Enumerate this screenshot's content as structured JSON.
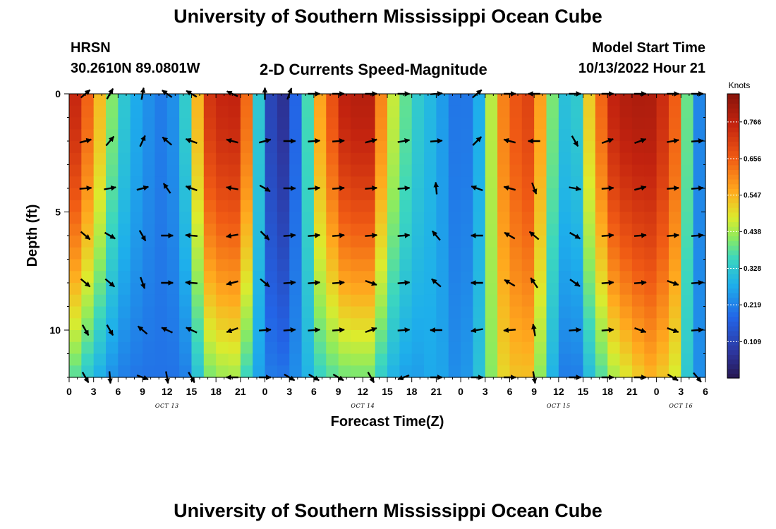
{
  "page": {
    "title_top": "University of Southern Mississippi Ocean Cube",
    "title_bottom": "University of Southern Mississippi Ocean Cube",
    "station": "HRSN",
    "coords": "30.2610N  89.0801W",
    "subtitle": "2-D Currents Speed-Magnitude",
    "model_label": "Model Start Time",
    "model_time": "10/13/2022 Hour 21"
  },
  "chart_data": {
    "type": "heatmap",
    "title": "2-D Currents Speed-Magnitude",
    "xlabel": "Forecast Time(Z)",
    "ylabel": "Depth (ft)",
    "x_tick_labels": [
      "0",
      "3",
      "6",
      "9",
      "12",
      "15",
      "18",
      "21",
      "0",
      "3",
      "6",
      "9",
      "12",
      "15",
      "18",
      "21",
      "0",
      "3",
      "6",
      "9",
      "12",
      "15",
      "18",
      "21",
      "0",
      "3",
      "6"
    ],
    "x_range_hours": [
      0,
      78
    ],
    "date_labels": [
      {
        "text": "OCT 13",
        "hour": 12
      },
      {
        "text": "OCT 14",
        "hour": 36
      },
      {
        "text": "OCT 15",
        "hour": 60
      },
      {
        "text": "OCT 16",
        "hour": 75
      }
    ],
    "y_ticks": [
      0,
      5,
      10
    ],
    "y_range_ft": [
      0,
      12
    ],
    "colorbar": {
      "label": "Knots",
      "ticks": [
        "0.766",
        "0.656",
        "0.547",
        "0.438",
        "0.328",
        "0.219",
        "0.109"
      ],
      "tick_values": [
        0.766,
        0.656,
        0.547,
        0.438,
        0.328,
        0.219,
        0.109
      ],
      "range": [
        0.0,
        0.85
      ]
    },
    "depth_levels_ft": [
      0,
      2,
      4,
      6,
      8,
      10,
      12
    ],
    "arrow_hours": [
      2,
      5,
      9,
      12,
      15,
      20,
      24,
      27,
      30,
      33,
      37,
      41,
      45,
      50,
      54,
      57,
      62,
      66,
      70,
      74,
      77
    ],
    "speed_profile": [
      {
        "hour": 0,
        "surface": 0.8,
        "bottom": 0.4
      },
      {
        "hour": 3,
        "surface": 0.6,
        "bottom": 0.3
      },
      {
        "hour": 6,
        "surface": 0.35,
        "bottom": 0.22
      },
      {
        "hour": 9,
        "surface": 0.25,
        "bottom": 0.2
      },
      {
        "hour": 12,
        "surface": 0.2,
        "bottom": 0.2
      },
      {
        "hour": 14,
        "surface": 0.3,
        "bottom": 0.2
      },
      {
        "hour": 17,
        "surface": 0.72,
        "bottom": 0.4
      },
      {
        "hour": 20,
        "surface": 0.78,
        "bottom": 0.45
      },
      {
        "hour": 22,
        "surface": 0.62,
        "bottom": 0.34
      },
      {
        "hour": 24,
        "surface": 0.15,
        "bottom": 0.22
      },
      {
        "hour": 26,
        "surface": 0.05,
        "bottom": 0.2
      },
      {
        "hour": 28,
        "surface": 0.2,
        "bottom": 0.24
      },
      {
        "hour": 31,
        "surface": 0.6,
        "bottom": 0.36
      },
      {
        "hour": 34,
        "surface": 0.78,
        "bottom": 0.4
      },
      {
        "hour": 37,
        "surface": 0.78,
        "bottom": 0.4
      },
      {
        "hour": 39,
        "surface": 0.5,
        "bottom": 0.3
      },
      {
        "hour": 42,
        "surface": 0.35,
        "bottom": 0.25
      },
      {
        "hour": 45,
        "surface": 0.28,
        "bottom": 0.28
      },
      {
        "hour": 48,
        "surface": 0.18,
        "bottom": 0.22
      },
      {
        "hour": 50,
        "surface": 0.25,
        "bottom": 0.3
      },
      {
        "hour": 53,
        "surface": 0.6,
        "bottom": 0.5
      },
      {
        "hour": 56,
        "surface": 0.72,
        "bottom": 0.55
      },
      {
        "hour": 58,
        "surface": 0.55,
        "bottom": 0.4
      },
      {
        "hour": 60,
        "surface": 0.32,
        "bottom": 0.22
      },
      {
        "hour": 62,
        "surface": 0.3,
        "bottom": 0.2
      },
      {
        "hour": 64,
        "surface": 0.55,
        "bottom": 0.32
      },
      {
        "hour": 67,
        "surface": 0.78,
        "bottom": 0.45
      },
      {
        "hour": 71,
        "surface": 0.8,
        "bottom": 0.55
      },
      {
        "hour": 74,
        "surface": 0.7,
        "bottom": 0.5
      },
      {
        "hour": 76,
        "surface": 0.35,
        "bottom": 0.3
      },
      {
        "hour": 78,
        "surface": 0.15,
        "bottom": 0.2
      }
    ],
    "arrow_angles_deg": [
      [
        40,
        60,
        80,
        145,
        150,
        155,
        90,
        70,
        0,
        0,
        0,
        0,
        5,
        40,
        0,
        180,
        0,
        0,
        0,
        0,
        0
      ],
      [
        15,
        50,
        65,
        140,
        160,
        165,
        15,
        0,
        5,
        5,
        15,
        10,
        5,
        45,
        165,
        180,
        300,
        20,
        20,
        10,
        5
      ],
      [
        5,
        10,
        15,
        125,
        160,
        170,
        330,
        0,
        5,
        5,
        5,
        5,
        95,
        160,
        165,
        290,
        350,
        5,
        15,
        5,
        5
      ],
      [
        320,
        330,
        300,
        0,
        175,
        190,
        315,
        5,
        5,
        5,
        5,
        5,
        130,
        180,
        150,
        140,
        330,
        5,
        5,
        5,
        5
      ],
      [
        320,
        320,
        290,
        0,
        175,
        195,
        320,
        5,
        5,
        5,
        340,
        5,
        140,
        180,
        150,
        125,
        325,
        5,
        5,
        340,
        5
      ],
      [
        300,
        300,
        140,
        155,
        155,
        200,
        5,
        5,
        5,
        5,
        20,
        5,
        180,
        190,
        185,
        100,
        5,
        5,
        340,
        340,
        5
      ],
      [
        300,
        275,
        340,
        280,
        300,
        180,
        0,
        330,
        330,
        330,
        300,
        200,
        0,
        0,
        0,
        280,
        0,
        0,
        0,
        330,
        310
      ]
    ]
  }
}
